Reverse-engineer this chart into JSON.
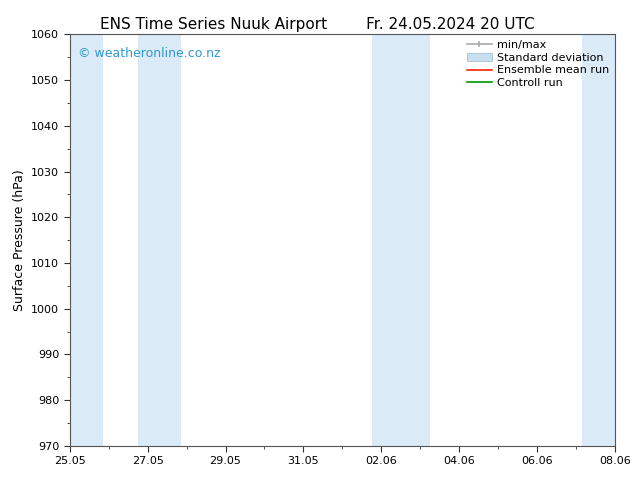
{
  "title_left": "ENS Time Series Nuuk Airport",
  "title_right": "Fr. 24.05.2024 20 UTC",
  "ylabel": "Surface Pressure (hPa)",
  "ylim": [
    970,
    1060
  ],
  "yticks": [
    970,
    980,
    990,
    1000,
    1010,
    1020,
    1030,
    1040,
    1050,
    1060
  ],
  "x_labels": [
    "25.05",
    "27.05",
    "29.05",
    "31.05",
    "02.06",
    "04.06",
    "06.06",
    "08.06"
  ],
  "x_min": 0,
  "x_max": 14,
  "shaded_bands": [
    {
      "x_start": 0.0,
      "x_end": 0.85,
      "color": "#daeaf7"
    },
    {
      "x_start": 1.75,
      "x_end": 2.85,
      "color": "#daeaf7"
    },
    {
      "x_start": 7.75,
      "x_end": 9.25,
      "color": "#daeaf7"
    },
    {
      "x_start": 13.15,
      "x_end": 14.0,
      "color": "#daeaf7"
    }
  ],
  "watermark_text": "© weatheronline.co.nz",
  "watermark_color": "#3399cc",
  "watermark_fontsize": 9,
  "bg_color": "#ffffff",
  "plot_bg_color": "#ffffff",
  "legend_labels": [
    "min/max",
    "Standard deviation",
    "Ensemble mean run",
    "Controll run"
  ],
  "legend_colors_line": [
    "#aaaaaa",
    "#c8dff0",
    "#ff2200",
    "#009900"
  ],
  "title_fontsize": 11,
  "axis_label_fontsize": 9,
  "tick_fontsize": 8,
  "legend_fontsize": 8
}
